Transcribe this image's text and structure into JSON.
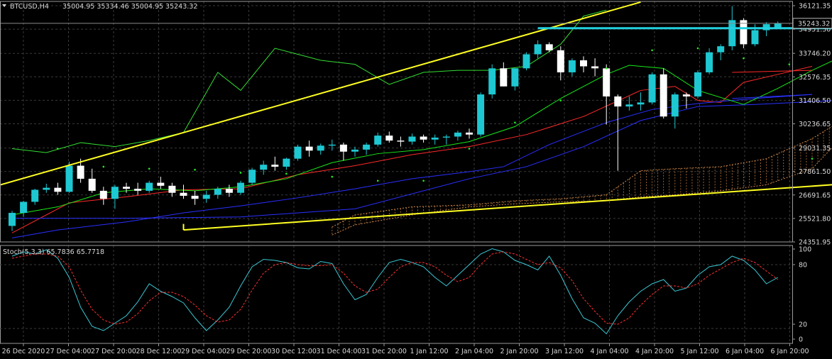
{
  "chart_data": [
    {
      "type": "candlestick",
      "symbol_header": "BTCUSD,H4",
      "ohlc_header": "35004.95 35334.46 35004.95 35243.32",
      "current_price_label": "35243.32",
      "ylim": [
        24351.95,
        36121.35
      ],
      "y_ticks": [
        "36121.35",
        "34951.50",
        "33746.20",
        "32576.35",
        "31406.50",
        "30236.65",
        "29031.35",
        "27861.50",
        "26691.65",
        "25521.80",
        "24351.95"
      ],
      "x_ticks": [
        "26 Dec 2020",
        "27 Dec 04:00",
        "27 Dec 20:00",
        "28 Dec 12:00",
        "29 Dec 04:00",
        "29 Dec 20:00",
        "30 Dec 12:00",
        "31 Dec 04:00",
        "31 Dec 20:00",
        "1 Jan 12:00",
        "2 Jan 04:00",
        "2 Jan 20:00",
        "3 Jan 12:00",
        "4 Jan 04:00",
        "4 Jan 20:00",
        "5 Jan 12:00",
        "6 Jan 04:00",
        "6 Jan 20:00"
      ],
      "grid": true,
      "candles": [
        [
          25150,
          25900,
          24900,
          25800
        ],
        [
          25800,
          26400,
          25600,
          26350
        ],
        [
          26350,
          27000,
          26200,
          26950
        ],
        [
          26950,
          27250,
          26800,
          27050
        ],
        [
          27050,
          27300,
          26700,
          26850
        ],
        [
          26850,
          28350,
          26800,
          28150
        ],
        [
          28150,
          28500,
          27300,
          27500
        ],
        [
          27500,
          28000,
          26800,
          26900
        ],
        [
          26900,
          27100,
          26200,
          26500
        ],
        [
          26500,
          27200,
          26000,
          27100
        ],
        [
          27100,
          27300,
          26800,
          27000
        ],
        [
          27000,
          27300,
          26700,
          26900
        ],
        [
          26900,
          27400,
          26800,
          27300
        ],
        [
          27300,
          27600,
          27000,
          27150
        ],
        [
          27150,
          27300,
          26600,
          26800
        ],
        [
          26800,
          27200,
          26500,
          26650
        ],
        [
          26650,
          26900,
          26200,
          26500
        ],
        [
          26500,
          26900,
          26300,
          26700
        ],
        [
          26700,
          27100,
          26500,
          27000
        ],
        [
          27000,
          27200,
          26600,
          26800
        ],
        [
          26800,
          27400,
          26700,
          27300
        ],
        [
          27300,
          28050,
          27200,
          27950
        ],
        [
          27950,
          28400,
          27700,
          28200
        ],
        [
          28200,
          28600,
          27900,
          28100
        ],
        [
          28100,
          28550,
          27950,
          28500
        ],
        [
          28500,
          29200,
          28400,
          29100
        ],
        [
          29100,
          29400,
          28600,
          28900
        ],
        [
          28900,
          29250,
          28700,
          29150
        ],
        [
          29150,
          29450,
          28900,
          29200
        ],
        [
          29200,
          29300,
          28400,
          28850
        ],
        [
          28850,
          29100,
          28600,
          28950
        ],
        [
          28950,
          29300,
          28700,
          29200
        ],
        [
          29200,
          29800,
          29100,
          29650
        ],
        [
          29650,
          29850,
          29300,
          29400
        ],
        [
          29400,
          29600,
          29100,
          29350
        ],
        [
          29350,
          29750,
          29200,
          29600
        ],
        [
          29600,
          29700,
          29300,
          29450
        ],
        [
          29450,
          29700,
          29200,
          29550
        ],
        [
          29550,
          29700,
          29200,
          29600
        ],
        [
          29600,
          29900,
          29400,
          29800
        ],
        [
          29800,
          30000,
          29500,
          29700
        ],
        [
          29700,
          31800,
          29600,
          31700
        ],
        [
          31700,
          33200,
          31500,
          33000
        ],
        [
          33000,
          33300,
          32100,
          32100
        ],
        [
          32100,
          33000,
          31900,
          33000
        ],
        [
          33000,
          33800,
          32900,
          33700
        ],
        [
          33700,
          34400,
          33500,
          34200
        ],
        [
          34200,
          34300,
          33800,
          33900
        ],
        [
          33900,
          34100,
          32400,
          32800
        ],
        [
          32800,
          33500,
          32600,
          33400
        ],
        [
          33400,
          33600,
          32800,
          33100
        ],
        [
          33100,
          33500,
          32600,
          33000
        ],
        [
          33000,
          33200,
          30200,
          31600
        ],
        [
          31600,
          31700,
          27900,
          31100
        ],
        [
          31100,
          31600,
          30900,
          31200
        ],
        [
          31200,
          31800,
          30900,
          31300
        ],
        [
          31300,
          32800,
          31200,
          32700
        ],
        [
          32700,
          33000,
          30500,
          30600
        ],
        [
          30600,
          31800,
          30000,
          31700
        ],
        [
          31700,
          31800,
          31000,
          31600
        ],
        [
          31600,
          32900,
          31500,
          32800
        ],
        [
          32800,
          34000,
          32700,
          33800
        ],
        [
          33800,
          34200,
          33400,
          34100
        ],
        [
          34100,
          36100,
          33900,
          35400
        ],
        [
          35400,
          35500,
          34000,
          34200
        ],
        [
          34200,
          35200,
          34100,
          34900
        ],
        [
          34900,
          35300,
          34600,
          35200
        ],
        [
          35005,
          35334,
          35005,
          35243
        ]
      ],
      "series": [
        {
          "name": "",
          "color": "#ff2a2a",
          "points": [
            [
              0,
              24800
            ],
            [
              5,
              26300
            ],
            [
              10,
              26600
            ],
            [
              15,
              26950
            ],
            [
              20,
              27000
            ],
            [
              25,
              27700
            ],
            [
              30,
              28150
            ],
            [
              35,
              28700
            ],
            [
              40,
              29100
            ],
            [
              45,
              29700
            ],
            [
              50,
              30600
            ],
            [
              55,
              31900
            ],
            [
              58,
              32100
            ],
            [
              60,
              31400
            ],
            [
              62,
              31300
            ],
            [
              64,
              32300
            ],
            [
              67,
              32700
            ],
            [
              70,
              33100
            ]
          ]
        },
        {
          "name": "",
          "color": "#2a30ff",
          "points": [
            [
              0,
              24550
            ],
            [
              4,
              24950
            ],
            [
              10,
              25350
            ],
            [
              15,
              25800
            ],
            [
              20,
              26150
            ],
            [
              25,
              26550
            ],
            [
              30,
              27000
            ],
            [
              35,
              27500
            ],
            [
              40,
              27850
            ],
            [
              43,
              28100
            ],
            [
              47,
              29200
            ],
            [
              52,
              30300
            ],
            [
              56,
              30950
            ],
            [
              60,
              31250
            ],
            [
              65,
              31500
            ],
            [
              70,
              31700
            ]
          ]
        },
        {
          "name": "",
          "color": "#18e818",
          "points": [
            [
              0,
              25700
            ],
            [
              4,
              26100
            ],
            [
              8,
              26800
            ],
            [
              12,
              27000
            ],
            [
              16,
              26900
            ],
            [
              20,
              27100
            ],
            [
              24,
              27500
            ],
            [
              28,
              28300
            ],
            [
              32,
              28750
            ],
            [
              36,
              28950
            ],
            [
              40,
              29350
            ],
            [
              44,
              30100
            ],
            [
              48,
              31500
            ],
            [
              52,
              32700
            ],
            [
              54,
              33150
            ],
            [
              57,
              33000
            ],
            [
              60,
              31900
            ],
            [
              64,
              31200
            ],
            [
              67,
              32000
            ],
            [
              70,
              32900
            ],
            [
              73,
              33700
            ]
          ]
        },
        {
          "name": "",
          "color": "#ff2a2a",
          "points": [
            [
              63,
              32800
            ],
            [
              70,
              32900
            ]
          ]
        },
        {
          "name": "",
          "color": "#2a30ff",
          "points": [
            [
              63,
              31500
            ],
            [
              70,
              31700
            ]
          ]
        },
        {
          "name": "",
          "color": "#2a30ff",
          "points": [
            [
              0,
              25530
            ],
            [
              10,
              25530
            ],
            [
              20,
              25600
            ],
            [
              30,
              26000
            ],
            [
              40,
              27500
            ],
            [
              45,
              28100
            ],
            [
              50,
              29100
            ],
            [
              55,
              30400
            ],
            [
              60,
              31100
            ],
            [
              65,
              31200
            ],
            [
              72,
              31400
            ]
          ]
        },
        {
          "name": "",
          "color": "#33dd33",
          "points": [
            [
              0,
              29000
            ],
            [
              3,
              28800
            ],
            [
              6,
              29300
            ],
            [
              9,
              29100
            ],
            [
              12,
              29400
            ],
            [
              15,
              29800
            ],
            [
              18,
              32800
            ],
            [
              20,
              31900
            ],
            [
              23,
              34000
            ],
            [
              25,
              33700
            ],
            [
              27,
              33400
            ],
            [
              30,
              33200
            ],
            [
              33,
              32200
            ],
            [
              36,
              32800
            ],
            [
              39,
              32900
            ],
            [
              42,
              32900
            ],
            [
              45,
              33100
            ],
            [
              48,
              34200
            ],
            [
              50,
              35600
            ],
            [
              52,
              35900
            ]
          ]
        }
      ],
      "cloud_bounds": [
        [
          28,
          24700,
          25100
        ],
        [
          30,
          25200,
          25700
        ],
        [
          35,
          25700,
          26100
        ],
        [
          40,
          26100,
          26200
        ],
        [
          44,
          26250,
          26400
        ],
        [
          48,
          26350,
          26500
        ],
        [
          52,
          26400,
          26700
        ],
        [
          55,
          26600,
          27900
        ],
        [
          58,
          26700,
          28000
        ],
        [
          62,
          26900,
          28100
        ],
        [
          66,
          27200,
          28500
        ],
        [
          70,
          28000,
          29500
        ],
        [
          72,
          29200,
          30200
        ]
      ],
      "psar_points": [
        [
          4,
          29000
        ],
        [
          8,
          28100
        ],
        [
          12,
          28000
        ],
        [
          16,
          27950
        ],
        [
          20,
          27800
        ],
        [
          24,
          27750
        ],
        [
          28,
          27600
        ],
        [
          32,
          27400
        ],
        [
          36,
          27400
        ],
        [
          40,
          29000
        ],
        [
          44,
          30300
        ],
        [
          48,
          31400
        ],
        [
          52,
          33000
        ],
        [
          56,
          33900
        ],
        [
          60,
          34000
        ],
        [
          64,
          33500
        ],
        [
          68,
          33200
        ],
        [
          70,
          28500
        ],
        [
          72,
          30000
        ]
      ],
      "trendlines": [
        {
          "color": "#ffff22",
          "from": [
            -1,
            27200
          ],
          "to": [
            55,
            36300
          ]
        },
        {
          "color": "#ffff22",
          "from": [
            15,
            24950
          ],
          "to": [
            73,
            27250
          ]
        },
        {
          "color": "#ffff22",
          "from": [
            15,
            24950
          ],
          "to": [
            15,
            25250
          ]
        }
      ],
      "horizontal_level": {
        "color": "#22d0e0",
        "value": 35000,
        "from": 46,
        "to": 73
      }
    },
    {
      "type": "line",
      "indicator_label": "Stoch(5,3,3) 65.7836 65.7718",
      "ylim": [
        0,
        100
      ],
      "y_ticks": [
        "100",
        "80",
        "20",
        "0"
      ],
      "series": [
        {
          "name": "",
          "color": "#3ac7d4",
          "dash": false,
          "values": [
            88,
            92,
            90,
            94,
            86,
            68,
            40,
            22,
            18,
            25,
            32,
            45,
            62,
            55,
            50,
            44,
            30,
            18,
            28,
            40,
            60,
            78,
            85,
            84,
            82,
            77,
            76,
            83,
            81,
            62,
            47,
            52,
            68,
            82,
            85,
            82,
            78,
            68,
            60,
            70,
            80,
            90,
            95,
            92,
            84,
            80,
            75,
            88,
            70,
            48,
            30,
            25,
            15,
            32,
            45,
            55,
            62,
            66,
            55,
            58,
            70,
            78,
            80,
            88,
            84,
            75,
            62,
            68
          ]
        },
        {
          "name": "",
          "color": "#ff3030",
          "dash": true,
          "values": [
            86,
            88,
            90,
            90,
            88,
            78,
            56,
            38,
            28,
            24,
            26,
            34,
            46,
            54,
            54,
            50,
            42,
            32,
            26,
            28,
            38,
            56,
            72,
            80,
            82,
            80,
            79,
            79,
            80,
            72,
            60,
            54,
            57,
            68,
            78,
            82,
            82,
            78,
            70,
            64,
            68,
            80,
            90,
            92,
            90,
            85,
            80,
            82,
            77,
            65,
            48,
            36,
            25,
            24,
            30,
            42,
            52,
            60,
            60,
            58,
            62,
            70,
            76,
            82,
            86,
            82,
            74,
            66
          ]
        }
      ],
      "levels": [
        80,
        20
      ]
    }
  ]
}
